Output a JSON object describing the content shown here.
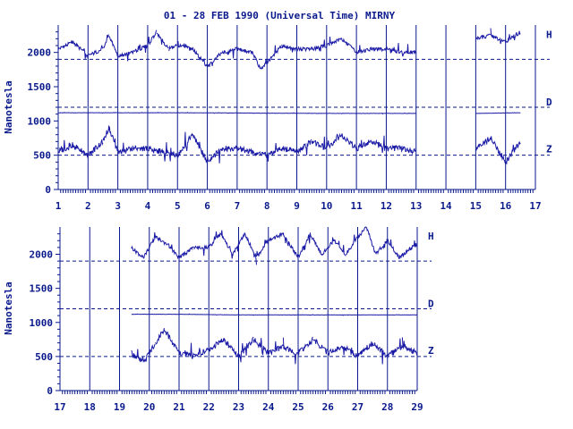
{
  "chart_data": {
    "type": "line",
    "title": "01 - 28 FEB 1990 (Universal Time) MIRNY",
    "ylabel": "Nanotesla",
    "colors": {
      "trace": "#1a1aa6",
      "axis": "#0a1a8c",
      "background": "#ffffff"
    },
    "legend_placement": "right",
    "panels": [
      {
        "xlim": [
          1,
          17
        ],
        "ylim": [
          0,
          2400
        ],
        "x_ticks": [
          "1",
          "2",
          "3",
          "4",
          "5",
          "6",
          "7",
          "8",
          "9",
          "10",
          "11",
          "12",
          "13",
          "14",
          "15",
          "16",
          "17"
        ],
        "y_ticks": [
          "0",
          "500",
          "1000",
          "1500",
          "2000"
        ],
        "y_tick_values": [
          0,
          500,
          1000,
          1500,
          2000
        ],
        "data_gaps": [
          [
            13.0,
            15.0
          ]
        ],
        "series": [
          {
            "name": "H",
            "baseline": 1900,
            "values_x": [
              1.0,
              1.5,
              2.0,
              2.5,
              2.7,
              3.0,
              3.5,
              4.0,
              4.3,
              4.7,
              5.0,
              5.5,
              6.0,
              6.5,
              7.0,
              7.5,
              7.8,
              8.0,
              8.5,
              9.0,
              9.5,
              10.0,
              10.5,
              11.0,
              11.5,
              12.0,
              12.5,
              13.0,
              15.0,
              15.5,
              16.0,
              16.5
            ],
            "values_y": [
              2050,
              2150,
              1950,
              2050,
              2250,
              1950,
              2000,
              2100,
              2300,
              2050,
              2100,
              2050,
              1800,
              2000,
              2050,
              2000,
              1750,
              1850,
              2100,
              2050,
              2050,
              2100,
              2200,
              2000,
              2050,
              2050,
              2000,
              2000,
              2200,
              2250,
              2150,
              2300
            ]
          },
          {
            "name": "D",
            "baseline": 1200,
            "values_x": [
              1.0,
              5.0,
              10.0,
              13.0,
              15.0,
              16.5
            ],
            "values_y": [
              1120,
              1120,
              1110,
              1110,
              1110,
              1120
            ]
          },
          {
            "name": "Z",
            "baseline": 500,
            "values_x": [
              1.0,
              1.5,
              2.0,
              2.5,
              2.7,
              3.0,
              3.5,
              4.0,
              4.5,
              5.0,
              5.5,
              6.0,
              6.5,
              7.0,
              7.5,
              8.0,
              8.5,
              9.0,
              9.5,
              10.0,
              10.5,
              11.0,
              11.5,
              12.0,
              12.5,
              13.0,
              15.0,
              15.5,
              16.0,
              16.5
            ],
            "values_y": [
              550,
              650,
              500,
              700,
              900,
              550,
              600,
              600,
              550,
              500,
              800,
              400,
              600,
              600,
              550,
              500,
              600,
              550,
              700,
              600,
              800,
              600,
              700,
              600,
              600,
              550,
              600,
              750,
              400,
              700
            ]
          }
        ]
      },
      {
        "xlim": [
          17,
          29
        ],
        "ylim": [
          0,
          2400
        ],
        "x_ticks": [
          "17",
          "18",
          "19",
          "20",
          "21",
          "22",
          "23",
          "24",
          "25",
          "26",
          "27",
          "28",
          "29"
        ],
        "y_ticks": [
          "0",
          "500",
          "1000",
          "1500",
          "2000"
        ],
        "y_tick_values": [
          0,
          500,
          1000,
          1500,
          2000
        ],
        "data_gaps": [
          [
            17.0,
            19.4
          ]
        ],
        "series": [
          {
            "name": "H",
            "baseline": 1900,
            "values_x": [
              19.4,
              19.8,
              20.2,
              20.6,
              21.0,
              21.5,
              22.0,
              22.4,
              22.8,
              23.2,
              23.6,
              24.0,
              24.5,
              25.0,
              25.4,
              25.8,
              26.2,
              26.6,
              27.0,
              27.3,
              27.6,
              28.0,
              28.4,
              28.8,
              29.0
            ],
            "values_y": [
              2100,
              1950,
              2250,
              2150,
              1950,
              2100,
              2100,
              2300,
              2000,
              2300,
              1950,
              2200,
              2300,
              1950,
              2300,
              2000,
              2200,
              2000,
              2250,
              2400,
              2000,
              2200,
              1950,
              2100,
              2150
            ]
          },
          {
            "name": "D",
            "baseline": 1200,
            "values_x": [
              19.4,
              21.0,
              23.0,
              25.0,
              27.0,
              29.0
            ],
            "values_y": [
              1120,
              1120,
              1110,
              1110,
              1110,
              1110
            ]
          },
          {
            "name": "Z",
            "baseline": 500,
            "values_x": [
              19.4,
              19.8,
              20.2,
              20.5,
              21.0,
              21.5,
              22.0,
              22.5,
              23.0,
              23.5,
              24.0,
              24.5,
              25.0,
              25.5,
              26.0,
              26.5,
              27.0,
              27.5,
              28.0,
              28.5,
              29.0
            ],
            "values_y": [
              550,
              400,
              700,
              900,
              550,
              500,
              600,
              750,
              500,
              750,
              550,
              650,
              550,
              750,
              550,
              650,
              500,
              700,
              500,
              650,
              550
            ]
          }
        ]
      }
    ]
  }
}
